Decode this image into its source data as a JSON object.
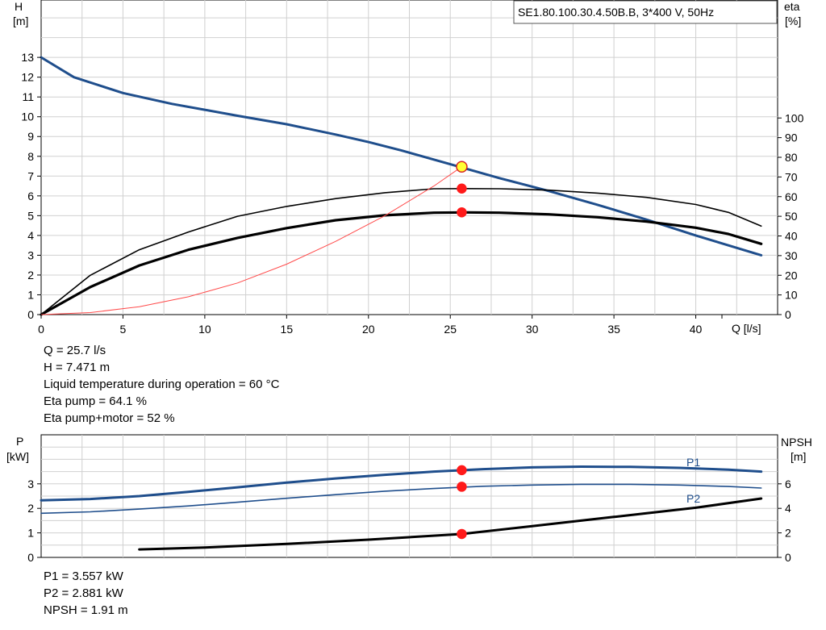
{
  "chart_data": [
    {
      "type": "line",
      "title": "SE1.80.100.30.4.50B.B, 3*400 V, 50Hz",
      "xlabel": "Q [l/s]",
      "ylabel": "H\n[m]",
      "ylabel_line1": "H",
      "ylabel_line2": "[m]",
      "y2label_line1": "eta",
      "y2label_line2": "[%]",
      "xlim": [
        0,
        45
      ],
      "ylim": [
        0,
        15.9
      ],
      "y2lim": [
        0,
        160
      ],
      "grid": true,
      "x_ticks": [
        0,
        5,
        10,
        15,
        20,
        25,
        30,
        35,
        40
      ],
      "y_ticks": [
        0,
        1,
        2,
        3,
        4,
        5,
        6,
        7,
        8,
        9,
        10,
        11,
        12,
        13
      ],
      "y2_ticks": [
        0,
        10,
        20,
        30,
        40,
        50,
        60,
        70,
        80,
        90,
        100
      ],
      "series": [
        {
          "axis": "left",
          "color": "#1f4e8c",
          "width": 3,
          "x": [
            0,
            2,
            5,
            8,
            10,
            12,
            15,
            18,
            20,
            22,
            25,
            28,
            31,
            34,
            37,
            40,
            42,
            44
          ],
          "y": [
            13.0,
            12.0,
            11.2,
            10.65,
            10.35,
            10.05,
            9.62,
            9.1,
            8.72,
            8.3,
            7.6,
            6.9,
            6.25,
            5.55,
            4.8,
            4.0,
            3.5,
            3.0
          ]
        },
        {
          "axis": "right",
          "color": "#000000",
          "width": 1.6,
          "x": [
            0,
            3,
            6,
            9,
            12,
            15,
            18,
            21,
            24,
            26,
            28,
            31,
            34,
            37,
            40,
            42,
            44
          ],
          "y": [
            0,
            20,
            33,
            42,
            50,
            55,
            59,
            62,
            64,
            64.1,
            64,
            63.3,
            61.8,
            59.6,
            56.0,
            52.0,
            45.0
          ]
        },
        {
          "axis": "right",
          "color": "#000000",
          "width": 3.2,
          "x": [
            0,
            3,
            6,
            9,
            12,
            15,
            18,
            21,
            24,
            26,
            28,
            31,
            34,
            37,
            40,
            42,
            44
          ],
          "y": [
            0,
            14,
            25,
            33,
            39,
            44,
            48,
            50.5,
            51.8,
            52,
            51.8,
            51,
            49.5,
            47.3,
            44.2,
            41,
            36
          ]
        },
        {
          "axis": "left",
          "color": "#ff4a4a",
          "width": 1,
          "x": [
            0,
            3,
            6,
            9,
            12,
            15,
            18,
            21,
            24,
            25.7
          ],
          "y": [
            0,
            0.1,
            0.4,
            0.9,
            1.6,
            2.55,
            3.7,
            5.0,
            6.5,
            7.471
          ]
        }
      ],
      "points": [
        {
          "x": 25.7,
          "y": 7.471,
          "axis": "left",
          "fill": "#ffff33",
          "stroke": "#d62222"
        },
        {
          "x": 25.7,
          "y": 64.1,
          "axis": "right",
          "fill": "#ff1a1a",
          "stroke": "#ff1a1a"
        },
        {
          "x": 25.7,
          "y": 52,
          "axis": "right",
          "fill": "#ff1a1a",
          "stroke": "#ff1a1a"
        }
      ]
    },
    {
      "type": "line",
      "ylabel_line1": "P",
      "ylabel_line2": "[kW]",
      "y2label_line1": "NPSH",
      "y2label_line2": "[m]",
      "xlim": [
        0,
        45
      ],
      "ylim": [
        0,
        5
      ],
      "y2lim": [
        0,
        10
      ],
      "grid": true,
      "y_ticks": [
        0,
        1,
        2,
        3
      ],
      "y2_ticks": [
        0,
        2,
        4,
        6
      ],
      "series": [
        {
          "name": "P1",
          "axis": "left",
          "color": "#1f4e8c",
          "width": 3,
          "x": [
            0,
            3,
            6,
            9,
            12,
            15,
            18,
            21,
            24,
            27,
            30,
            33,
            36,
            39,
            42,
            44
          ],
          "y": [
            2.33,
            2.38,
            2.5,
            2.67,
            2.86,
            3.05,
            3.22,
            3.37,
            3.5,
            3.6,
            3.67,
            3.7,
            3.69,
            3.65,
            3.58,
            3.5
          ]
        },
        {
          "name": "P2",
          "axis": "left",
          "color": "#1f4e8c",
          "width": 1.6,
          "x": [
            0,
            3,
            6,
            9,
            12,
            15,
            18,
            21,
            24,
            27,
            30,
            33,
            36,
            39,
            42,
            44
          ],
          "y": [
            1.8,
            1.86,
            1.97,
            2.1,
            2.25,
            2.41,
            2.56,
            2.7,
            2.81,
            2.9,
            2.95,
            2.98,
            2.98,
            2.95,
            2.89,
            2.83
          ]
        },
        {
          "axis": "right",
          "color": "#000000",
          "width": 3,
          "x": [
            6,
            10,
            15,
            20,
            25.7,
            30,
            35,
            40,
            44
          ],
          "y": [
            0.65,
            0.8,
            1.1,
            1.45,
            1.91,
            2.55,
            3.3,
            4.05,
            4.8
          ]
        }
      ],
      "points": [
        {
          "x": 25.7,
          "y": 3.557,
          "axis": "left",
          "fill": "#ff1a1a",
          "stroke": "#ff1a1a"
        },
        {
          "x": 25.7,
          "y": 2.881,
          "axis": "left",
          "fill": "#ff1a1a",
          "stroke": "#ff1a1a"
        },
        {
          "x": 25.7,
          "y": 1.91,
          "axis": "right",
          "fill": "#ff1a1a",
          "stroke": "#ff1a1a"
        }
      ]
    }
  ],
  "duty_info": [
    "Q = 25.7 l/s",
    "H = 7.471 m",
    "Liquid temperature during operation = 60 °C",
    "Eta pump = 64.1 %",
    "Eta pump+motor = 52 %"
  ],
  "power_info": [
    "P1 = 3.557 kW",
    "P2 = 2.881 kW",
    "NPSH = 1.91 m"
  ]
}
